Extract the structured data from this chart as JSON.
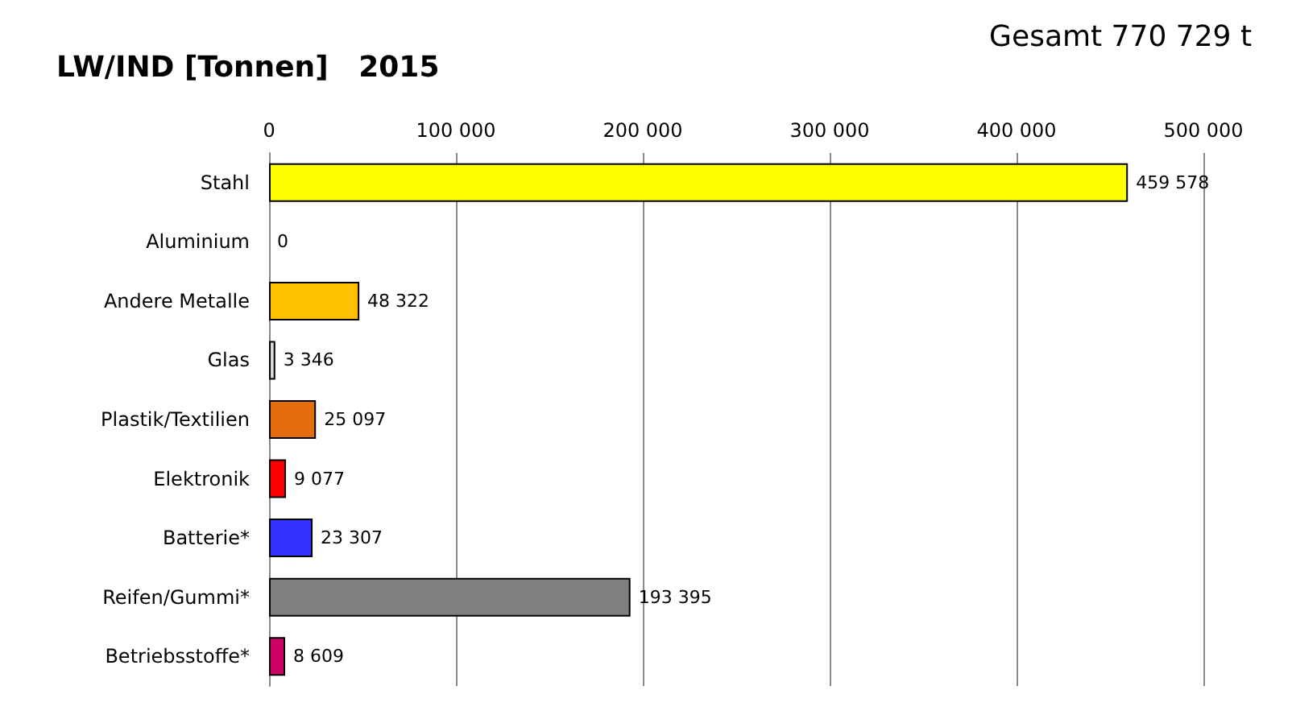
{
  "chart_data": {
    "type": "bar",
    "orientation": "horizontal",
    "title": "LW/IND [Tonnen]   2015",
    "annotations": [
      "Gesamt 770 729 t"
    ],
    "categories": [
      "Stahl",
      "Aluminium",
      "Andere Metalle",
      "Glas",
      "Plastik/Textilien",
      "Elektronik",
      "Batterie*",
      "Reifen/Gummi*",
      "Betriebsstoffe*"
    ],
    "values": [
      459578,
      0,
      48322,
      3346,
      25097,
      9077,
      23307,
      193395,
      8609
    ],
    "colors": [
      "#ffff00",
      null,
      "#ffc000",
      "#d9d9d9",
      "#e46c0a",
      "#ff0000",
      "#3333ff",
      "#808080",
      "#cc0066"
    ],
    "value_labels": [
      "459 578",
      "0",
      "48 322",
      "3 346",
      "25 097",
      "9 077",
      "23 307",
      "193 395",
      "8 609"
    ],
    "xlim": [
      0,
      500000
    ],
    "xticks": [
      0,
      {
        "value": 100000,
        "label": "100 000"
      },
      {
        "value": 200000,
        "label": "200 000"
      },
      {
        "value": 300000,
        "label": "300 000"
      },
      {
        "value": 400000,
        "label": "400 000"
      },
      {
        "value": 500000,
        "label": "500 000"
      }
    ],
    "grid": "x"
  }
}
